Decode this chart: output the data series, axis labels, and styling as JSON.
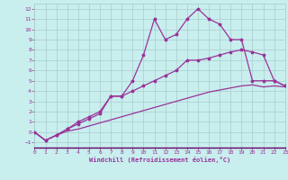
{
  "bg_color": "#c8eeee",
  "grid_color": "#aacccc",
  "line_color": "#993399",
  "xlim": [
    0,
    23
  ],
  "ylim": [
    -1.5,
    12.5
  ],
  "xticks": [
    0,
    1,
    2,
    3,
    4,
    5,
    6,
    7,
    8,
    9,
    10,
    11,
    12,
    13,
    14,
    15,
    16,
    17,
    18,
    19,
    20,
    21,
    22,
    23
  ],
  "yticks": [
    -1,
    0,
    1,
    2,
    3,
    4,
    5,
    6,
    7,
    8,
    9,
    10,
    11,
    12
  ],
  "xlabel": "Windchill (Refroidissement éolien,°C)",
  "line1_x": [
    0,
    1,
    2,
    3,
    4,
    5,
    6,
    7,
    8,
    9,
    10,
    11,
    12,
    13,
    14,
    15,
    16,
    17,
    18,
    19,
    20,
    21,
    22,
    23
  ],
  "line1_y": [
    0,
    -0.8,
    -0.3,
    0.1,
    0.3,
    0.6,
    0.9,
    1.2,
    1.5,
    1.8,
    2.1,
    2.4,
    2.7,
    3.0,
    3.3,
    3.6,
    3.9,
    4.1,
    4.3,
    4.5,
    4.6,
    4.4,
    4.5,
    4.4
  ],
  "line2_x": [
    0,
    1,
    2,
    3,
    4,
    5,
    6,
    7,
    8,
    9,
    10,
    11,
    12,
    13,
    14,
    15,
    16,
    17,
    18,
    19,
    20,
    21,
    22,
    23
  ],
  "line2_y": [
    0,
    -0.8,
    -0.3,
    0.3,
    0.8,
    1.3,
    1.8,
    3.5,
    3.5,
    4.0,
    4.5,
    5.0,
    5.5,
    6.0,
    7.0,
    7.0,
    7.2,
    7.5,
    7.8,
    8.0,
    7.8,
    7.5,
    5.0,
    4.5
  ],
  "line3_x": [
    0,
    1,
    2,
    3,
    4,
    5,
    6,
    7,
    8,
    9,
    10,
    11,
    12,
    13,
    14,
    15,
    16,
    17,
    18,
    19,
    20,
    21,
    22,
    23
  ],
  "line3_y": [
    0,
    -0.8,
    -0.3,
    0.3,
    1.0,
    1.5,
    2.0,
    3.5,
    3.5,
    5.0,
    7.5,
    11.0,
    9.0,
    9.5,
    11.0,
    12.0,
    11.0,
    10.5,
    9.0,
    9.0,
    5.0,
    5.0,
    5.0,
    4.5
  ]
}
